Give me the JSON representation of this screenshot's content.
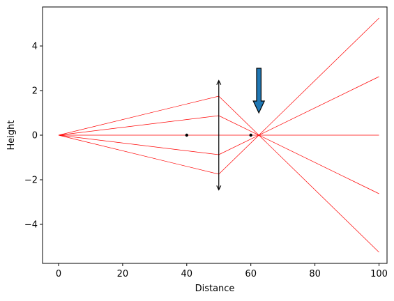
{
  "chart_data": {
    "type": "line",
    "title": "",
    "xlabel": "Distance",
    "ylabel": "Height",
    "xlim": [
      -5.0,
      102.5
    ],
    "ylim": [
      -5.75,
      5.75
    ],
    "grid": false,
    "xticks": [
      0,
      20,
      40,
      60,
      80,
      100
    ],
    "yticks": [
      -4,
      -2,
      0,
      2,
      4
    ],
    "xtick_labels": [
      "0",
      "20",
      "40",
      "60",
      "80",
      "100"
    ],
    "ytick_labels": [
      "−4",
      "−2",
      "0",
      "2",
      "4"
    ],
    "ray_color": "#ff0000",
    "rays": [
      [
        [
          0,
          0
        ],
        [
          50,
          1.75
        ],
        [
          100,
          -5.25
        ]
      ],
      [
        [
          0,
          0
        ],
        [
          50,
          0.875
        ],
        [
          100,
          -2.625
        ]
      ],
      [
        [
          0,
          0
        ],
        [
          50,
          0
        ],
        [
          100,
          0
        ]
      ],
      [
        [
          0,
          0
        ],
        [
          50,
          -0.875
        ],
        [
          100,
          2.625
        ]
      ],
      [
        [
          0,
          0
        ],
        [
          50,
          -1.75
        ],
        [
          100,
          5.25
        ]
      ]
    ],
    "lens": {
      "x": 50,
      "y_top": 2.45,
      "y_bottom": -2.45,
      "color": "#000000"
    },
    "focal_points": [
      {
        "x": 40,
        "y": 0
      },
      {
        "x": 60,
        "y": 0
      }
    ],
    "image_arrow": {
      "x": 62.5,
      "y_tail": 3.0,
      "y_head": 1.0,
      "fill": "#1f77b4",
      "edge": "#000000"
    }
  }
}
